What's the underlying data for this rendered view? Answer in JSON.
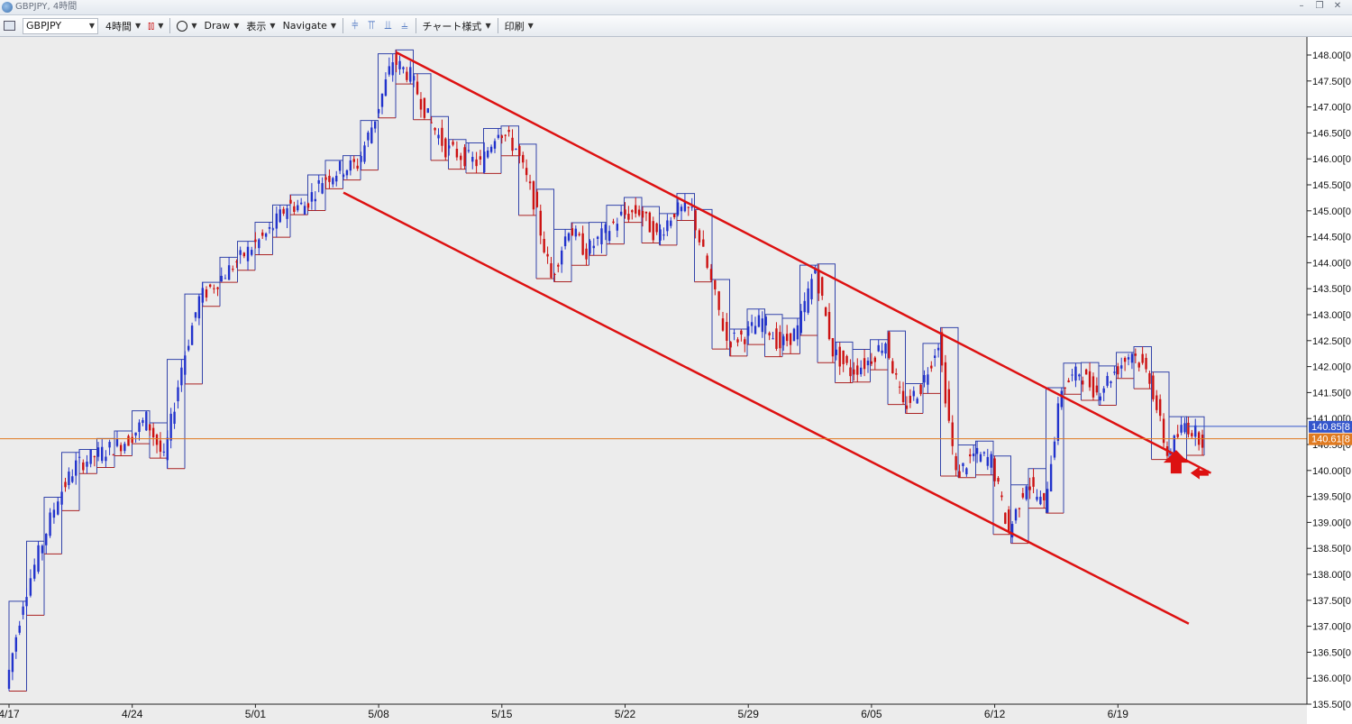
{
  "window": {
    "title": "GBPJPY, 4時間"
  },
  "toolbar": {
    "symbol": "GBPJPY",
    "timeframe": "4時間",
    "draw_label": "Draw",
    "display_label": "表示",
    "navigate_label": "Navigate",
    "chart_style_label": "チャート様式",
    "print_label": "印刷"
  },
  "colors": {
    "background": "#ececec",
    "up_candle": "#2233cc",
    "down_candle": "#cc1111",
    "box_upper": "#3344aa",
    "box_lower": "#aa2222",
    "trendline": "#dd1111",
    "price_line_bid": "#e07a20",
    "price_line_ask": "#3355cc"
  },
  "chart_data": {
    "type": "candlestick",
    "symbol": "GBPJPY",
    "timeframe": "4時間",
    "x_ticks": [
      "4/17",
      "4/24",
      "5/01",
      "5/08",
      "5/15",
      "5/22",
      "5/29",
      "6/05",
      "6/12",
      "6/19"
    ],
    "y_ticks": [
      "148.00",
      "147.50",
      "147.00",
      "146.50",
      "146.00",
      "145.50",
      "145.00",
      "144.50",
      "144.00",
      "143.50",
      "143.00",
      "142.50",
      "142.00",
      "141.50",
      "141.00",
      "140.50",
      "140.00",
      "139.50",
      "139.00",
      "138.50",
      "138.00",
      "137.50",
      "137.00",
      "136.50",
      "136.00",
      "135.50"
    ],
    "y_tick_suffix": "[0",
    "ylim": [
      135.5,
      148.0
    ],
    "price_labels": [
      {
        "value": "140.85",
        "suffix": "[8",
        "type": "ask"
      },
      {
        "value": "140.61",
        "suffix": "[8",
        "type": "bid"
      }
    ],
    "close_path": [
      [
        "4/17",
        135.8
      ],
      [
        "4/18",
        137.5
      ],
      [
        "4/20",
        139.5
      ],
      [
        "4/21",
        140.1
      ],
      [
        "4/24",
        140.6
      ],
      [
        "4/25",
        141.0
      ],
      [
        "4/26",
        140.2
      ],
      [
        "4/27",
        142.0
      ],
      [
        "4/28",
        143.3
      ],
      [
        "5/01",
        144.3
      ],
      [
        "5/02",
        144.6
      ],
      [
        "5/03",
        145.1
      ],
      [
        "5/04",
        145.1
      ],
      [
        "5/05",
        145.6
      ],
      [
        "5/06",
        145.8
      ],
      [
        "5/07",
        145.9
      ],
      [
        "5/08",
        146.8
      ],
      [
        "5/09",
        147.9
      ],
      [
        "5/10",
        147.6
      ],
      [
        "5/11",
        146.8
      ],
      [
        "5/12",
        146.2
      ],
      [
        "5/14",
        145.9
      ],
      [
        "5/15",
        146.6
      ],
      [
        "5/16",
        146.2
      ],
      [
        "5/17",
        145.2
      ],
      [
        "5/18",
        143.7
      ],
      [
        "5/19",
        144.7
      ],
      [
        "5/20",
        144.2
      ],
      [
        "5/22",
        144.9
      ],
      [
        "5/23",
        145.0
      ],
      [
        "5/24",
        144.5
      ],
      [
        "5/25",
        145.0
      ],
      [
        "5/26",
        145.0
      ],
      [
        "5/28",
        142.5
      ],
      [
        "5/29",
        142.6
      ],
      [
        "5/30",
        142.9
      ],
      [
        "5/31",
        142.4
      ],
      [
        "6/01",
        142.7
      ],
      [
        "6/02",
        143.9
      ],
      [
        "6/03",
        142.3
      ],
      [
        "6/04",
        141.9
      ],
      [
        "6/05",
        142.1
      ],
      [
        "6/06",
        142.5
      ],
      [
        "6/07",
        141.2
      ],
      [
        "6/08",
        141.6
      ],
      [
        "6/09",
        142.5
      ],
      [
        "6/10",
        139.9
      ],
      [
        "6/11",
        140.3
      ],
      [
        "6/12",
        140.2
      ],
      [
        "6/13",
        138.8
      ],
      [
        "6/14",
        139.8
      ],
      [
        "6/15",
        139.3
      ],
      [
        "6/16",
        141.6
      ],
      [
        "6/17",
        141.9
      ],
      [
        "6/18",
        141.5
      ],
      [
        "6/19",
        141.9
      ],
      [
        "6/20",
        142.3
      ],
      [
        "6/21",
        141.8
      ],
      [
        "6/22",
        140.3
      ],
      [
        "6/23",
        140.9
      ],
      [
        "6/24",
        140.6
      ]
    ]
  }
}
